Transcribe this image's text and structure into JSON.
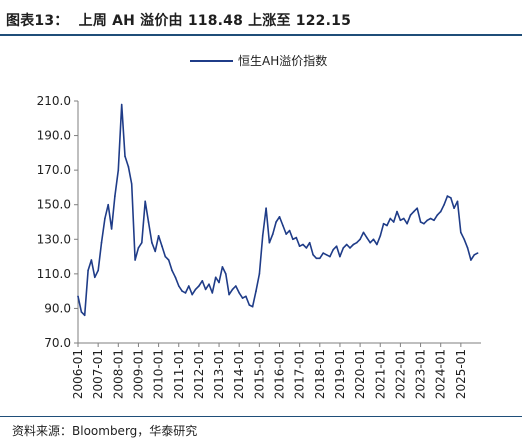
{
  "header": {
    "figure_label": "图表13：",
    "title_text": "上周 AH 溢价由 118.48 上涨至 122.15"
  },
  "source_note": "资料来源：Bloomberg，华泰研究",
  "colors": {
    "series_line": "#1f3c88",
    "rules": "#1f4e79",
    "axis": "#7f7f7f",
    "text": "#1f1f1f"
  },
  "chart_data": {
    "type": "line",
    "title": "上周 AH 溢价由 118.48 上涨至 122.15",
    "xlabel": "",
    "ylabel": "",
    "ylim": [
      70,
      210
    ],
    "yticks": [
      "210.0",
      "190.0",
      "170.0",
      "150.0",
      "130.0",
      "110.0",
      "90.0",
      "70.0"
    ],
    "ytick_values": [
      210,
      190,
      170,
      150,
      130,
      110,
      90,
      70
    ],
    "x_tick_labels": [
      "2006-01",
      "2007-01",
      "2008-01",
      "2009-01",
      "2010-01",
      "2011-01",
      "2012-01",
      "2013-01",
      "2014-01",
      "2015-01",
      "2016-01",
      "2017-01",
      "2018-01",
      "2019-01",
      "2020-01",
      "2021-01",
      "2022-01",
      "2023-01",
      "2024-01",
      "2025-01"
    ],
    "legend": {
      "position": "top-center",
      "entries": [
        "恒生AH溢价指数"
      ]
    },
    "grid": false,
    "series": [
      {
        "name": "恒生AH溢价指数",
        "x": [
          "2006-01",
          "2006-03",
          "2006-05",
          "2006-07",
          "2006-09",
          "2006-11",
          "2007-01",
          "2007-03",
          "2007-05",
          "2007-07",
          "2007-09",
          "2007-11",
          "2008-01",
          "2008-03",
          "2008-05",
          "2008-07",
          "2008-09",
          "2008-11",
          "2009-01",
          "2009-03",
          "2009-05",
          "2009-07",
          "2009-09",
          "2009-11",
          "2010-01",
          "2010-03",
          "2010-05",
          "2010-07",
          "2010-09",
          "2010-11",
          "2011-01",
          "2011-03",
          "2011-05",
          "2011-07",
          "2011-09",
          "2011-11",
          "2012-01",
          "2012-03",
          "2012-05",
          "2012-07",
          "2012-09",
          "2012-11",
          "2013-01",
          "2013-03",
          "2013-05",
          "2013-07",
          "2013-09",
          "2013-11",
          "2014-01",
          "2014-03",
          "2014-05",
          "2014-07",
          "2014-09",
          "2014-11",
          "2015-01",
          "2015-03",
          "2015-05",
          "2015-07",
          "2015-09",
          "2015-11",
          "2016-01",
          "2016-03",
          "2016-05",
          "2016-07",
          "2016-09",
          "2016-11",
          "2017-01",
          "2017-03",
          "2017-05",
          "2017-07",
          "2017-09",
          "2017-11",
          "2018-01",
          "2018-03",
          "2018-05",
          "2018-07",
          "2018-09",
          "2018-11",
          "2019-01",
          "2019-03",
          "2019-05",
          "2019-07",
          "2019-09",
          "2019-11",
          "2020-01",
          "2020-03",
          "2020-05",
          "2020-07",
          "2020-09",
          "2020-11",
          "2021-01",
          "2021-03",
          "2021-05",
          "2021-07",
          "2021-09",
          "2021-11",
          "2022-01",
          "2022-03",
          "2022-05",
          "2022-07",
          "2022-09",
          "2022-11",
          "2023-01",
          "2023-03",
          "2023-05",
          "2023-07",
          "2023-09",
          "2023-11",
          "2024-01",
          "2024-03",
          "2024-05",
          "2024-07",
          "2024-09",
          "2024-11",
          "2025-01",
          "2025-03",
          "2025-05",
          "2025-07",
          "2025-09",
          "2025-11"
        ],
        "values": [
          97,
          88,
          86,
          112,
          118,
          108,
          112,
          128,
          142,
          150,
          136,
          155,
          170,
          208,
          178,
          172,
          162,
          118,
          125,
          128,
          152,
          140,
          128,
          123,
          132,
          126,
          120,
          118,
          112,
          108,
          103,
          100,
          99,
          103,
          98,
          101,
          103,
          106,
          101,
          104,
          99,
          108,
          105,
          114,
          110,
          98,
          101,
          103,
          99,
          96,
          97,
          92,
          91,
          100,
          110,
          132,
          148,
          128,
          133,
          140,
          143,
          138,
          133,
          135,
          130,
          131,
          126,
          127,
          125,
          128,
          121,
          119,
          119,
          122,
          121,
          120,
          124,
          126,
          120,
          125,
          127,
          125,
          127,
          128,
          130,
          134,
          131,
          128,
          130,
          127,
          132,
          139,
          138,
          142,
          140,
          146,
          141,
          142,
          139,
          144,
          146,
          148,
          140,
          139,
          141,
          142,
          141,
          144,
          146,
          150,
          155,
          154,
          148,
          152,
          134,
          130,
          125,
          118,
          121,
          122
        ]
      }
    ]
  }
}
